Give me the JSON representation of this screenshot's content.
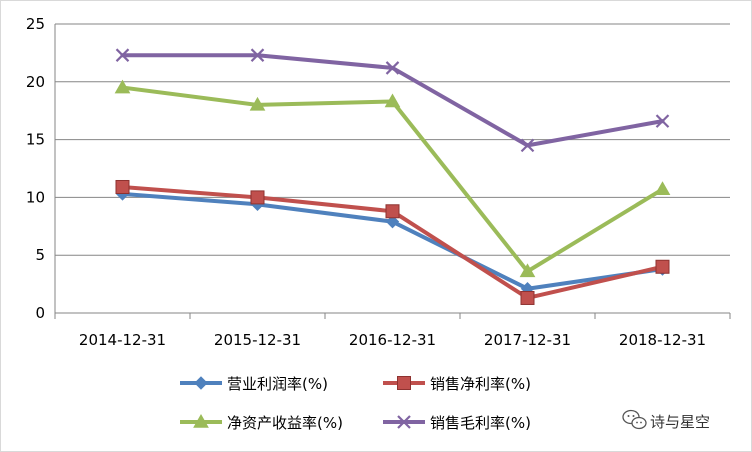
{
  "chart_data": {
    "type": "line",
    "categories": [
      "2014-12-31",
      "2015-12-31",
      "2016-12-31",
      "2017-12-31",
      "2018-12-31"
    ],
    "ylim": [
      0,
      25
    ],
    "yticks": [
      0,
      5,
      10,
      15,
      20,
      25
    ],
    "grid": true,
    "legend_position": "bottom",
    "series": [
      {
        "name": "营业利润率(%)",
        "color": "#4f81bd",
        "marker": "diamond",
        "values": [
          10.3,
          9.4,
          7.9,
          2.1,
          3.8
        ]
      },
      {
        "name": "销售净利率(%)",
        "color": "#c0504d",
        "marker": "square",
        "values": [
          10.9,
          10.0,
          8.8,
          1.3,
          4.0
        ]
      },
      {
        "name": "净资产收益率(%)",
        "color": "#9bbb59",
        "marker": "triangle",
        "values": [
          19.5,
          18.0,
          18.3,
          3.6,
          10.7
        ]
      },
      {
        "name": "销售毛利率(%)",
        "color": "#8064a2",
        "marker": "x",
        "values": [
          22.3,
          22.3,
          21.2,
          14.5,
          16.6
        ]
      }
    ]
  },
  "watermark": {
    "text": "诗与星空",
    "icon": "wechat-icon"
  }
}
